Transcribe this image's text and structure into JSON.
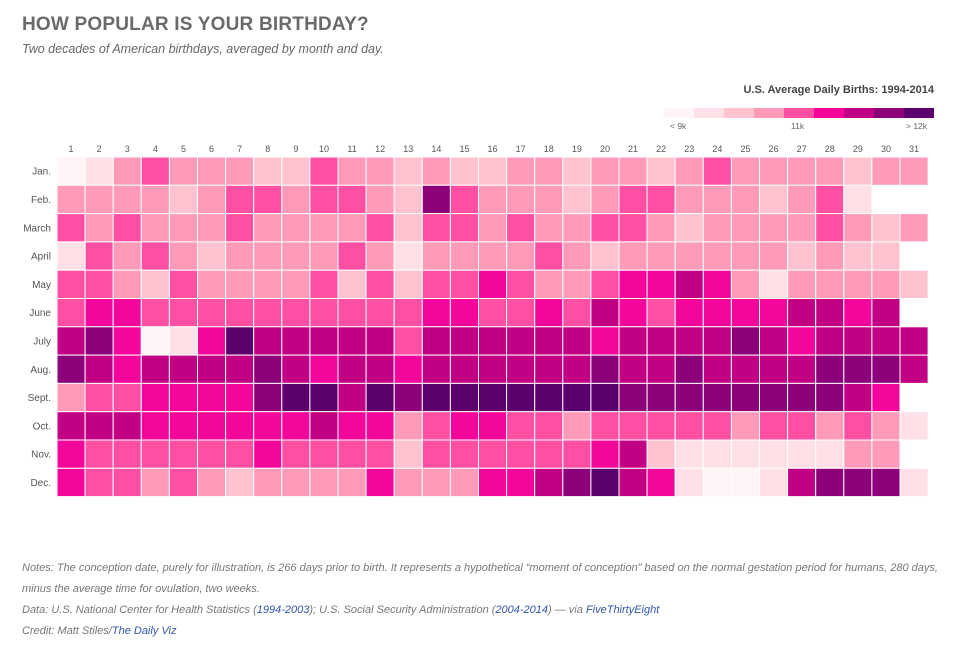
{
  "title": "HOW POPULAR IS YOUR BIRTHDAY?",
  "subtitle": "Two decades of American birthdays, averaged by month and day.",
  "legend": {
    "title": "U.S. Average Daily Births: 1994-2014",
    "labels": [
      "< 9k",
      "11k",
      "> 12k"
    ],
    "colors": [
      "#fff4f6",
      "#ffe0e6",
      "#ffc2cf",
      "#ff9bb9",
      "#ff4fa3",
      "#f4069c",
      "#c20083",
      "#8c0079",
      "#5b006d"
    ]
  },
  "notes": {
    "line1": "Notes: The conception date, purely for illustration, is 266 days prior to birth. It represents a hypothetical “moment of conception” based on the normal gestation period for humans, 280 days, minus the average time for ovulation, two weeks.",
    "data_prefix": "Data: U.S. National Center for Health Statistics (",
    "data_link1": "1994-2003",
    "data_mid": "); U.S. Social Security Administration (",
    "data_link2": "2004-2014",
    "data_mid2": ") — via ",
    "data_link3": "FiveThirtyEight",
    "credit_prefix": "Credit: Matt Stiles/",
    "credit_link": "The Daily Viz"
  },
  "chart_data": {
    "type": "heatmap",
    "title": "HOW POPULAR IS YOUR BIRTHDAY?",
    "x_labels": [
      "1",
      "2",
      "3",
      "4",
      "5",
      "6",
      "7",
      "8",
      "9",
      "10",
      "11",
      "12",
      "13",
      "14",
      "15",
      "16",
      "17",
      "18",
      "19",
      "20",
      "21",
      "22",
      "23",
      "24",
      "25",
      "26",
      "27",
      "28",
      "29",
      "30",
      "31"
    ],
    "y_labels": [
      "Jan.",
      "Feb.",
      "March",
      "April",
      "May",
      "June",
      "July",
      "Aug.",
      "Sept.",
      "Oct.",
      "Nov.",
      "Dec."
    ],
    "color_levels": [
      "#fff4f6",
      "#ffe0e6",
      "#ffc2cf",
      "#ff9bb9",
      "#ff4fa3",
      "#f4069c",
      "#c20083",
      "#8c0079",
      "#5b006d"
    ],
    "value_bins": "0 = lowest (< 9k) ... 8 = highest (> 12k)",
    "values": [
      [
        0,
        1,
        3,
        4,
        3,
        3,
        3,
        2,
        2,
        4,
        3,
        3,
        2,
        3,
        2,
        2,
        3,
        3,
        2,
        3,
        3,
        2,
        3,
        4,
        3,
        3,
        3,
        3,
        2,
        3,
        3
      ],
      [
        3,
        3,
        3,
        3,
        2,
        3,
        4,
        4,
        3,
        4,
        4,
        3,
        2,
        7,
        4,
        3,
        3,
        3,
        2,
        3,
        4,
        4,
        3,
        3,
        3,
        2,
        3,
        4,
        1,
        null,
        null
      ],
      [
        4,
        3,
        4,
        3,
        3,
        3,
        4,
        3,
        3,
        3,
        3,
        4,
        2,
        4,
        4,
        3,
        4,
        3,
        3,
        4,
        4,
        3,
        2,
        3,
        3,
        3,
        3,
        4,
        3,
        2,
        3
      ],
      [
        1,
        4,
        3,
        4,
        3,
        2,
        3,
        3,
        3,
        3,
        4,
        3,
        1,
        3,
        3,
        3,
        3,
        4,
        3,
        2,
        3,
        3,
        3,
        3,
        3,
        3,
        2,
        3,
        2,
        2,
        null
      ],
      [
        4,
        4,
        3,
        2,
        4,
        3,
        3,
        3,
        3,
        4,
        2,
        4,
        2,
        4,
        4,
        5,
        4,
        3,
        3,
        4,
        5,
        5,
        6,
        5,
        3,
        1,
        3,
        3,
        3,
        3,
        2
      ],
      [
        4,
        5,
        5,
        4,
        4,
        4,
        4,
        4,
        4,
        4,
        4,
        4,
        4,
        5,
        5,
        4,
        4,
        5,
        4,
        6,
        5,
        4,
        5,
        5,
        5,
        5,
        6,
        6,
        5,
        6,
        null
      ],
      [
        6,
        7,
        5,
        0,
        1,
        5,
        8,
        6,
        6,
        6,
        6,
        6,
        4,
        6,
        6,
        6,
        6,
        6,
        6,
        5,
        6,
        6,
        6,
        6,
        7,
        6,
        5,
        6,
        6,
        6,
        6
      ],
      [
        7,
        6,
        5,
        6,
        6,
        6,
        6,
        7,
        6,
        5,
        6,
        6,
        5,
        6,
        6,
        6,
        6,
        6,
        6,
        7,
        6,
        6,
        7,
        6,
        6,
        6,
        6,
        7,
        7,
        7,
        6
      ],
      [
        3,
        4,
        4,
        5,
        5,
        5,
        5,
        7,
        8,
        8,
        6,
        8,
        7,
        8,
        8,
        8,
        8,
        8,
        8,
        8,
        7,
        7,
        7,
        7,
        7,
        7,
        7,
        7,
        6,
        5,
        null
      ],
      [
        6,
        6,
        6,
        5,
        5,
        5,
        5,
        5,
        5,
        6,
        5,
        5,
        3,
        4,
        5,
        5,
        4,
        4,
        3,
        4,
        4,
        4,
        4,
        4,
        3,
        4,
        4,
        3,
        4,
        3,
        1
      ],
      [
        5,
        4,
        4,
        4,
        4,
        4,
        4,
        5,
        4,
        4,
        4,
        4,
        2,
        4,
        4,
        4,
        4,
        4,
        4,
        5,
        6,
        2,
        1,
        1,
        1,
        1,
        1,
        1,
        3,
        3,
        null
      ],
      [
        5,
        4,
        4,
        3,
        4,
        3,
        2,
        3,
        3,
        3,
        3,
        5,
        3,
        3,
        3,
        5,
        5,
        6,
        7,
        8,
        6,
        5,
        1,
        0,
        0,
        1,
        6,
        7,
        7,
        7,
        1
      ]
    ]
  }
}
